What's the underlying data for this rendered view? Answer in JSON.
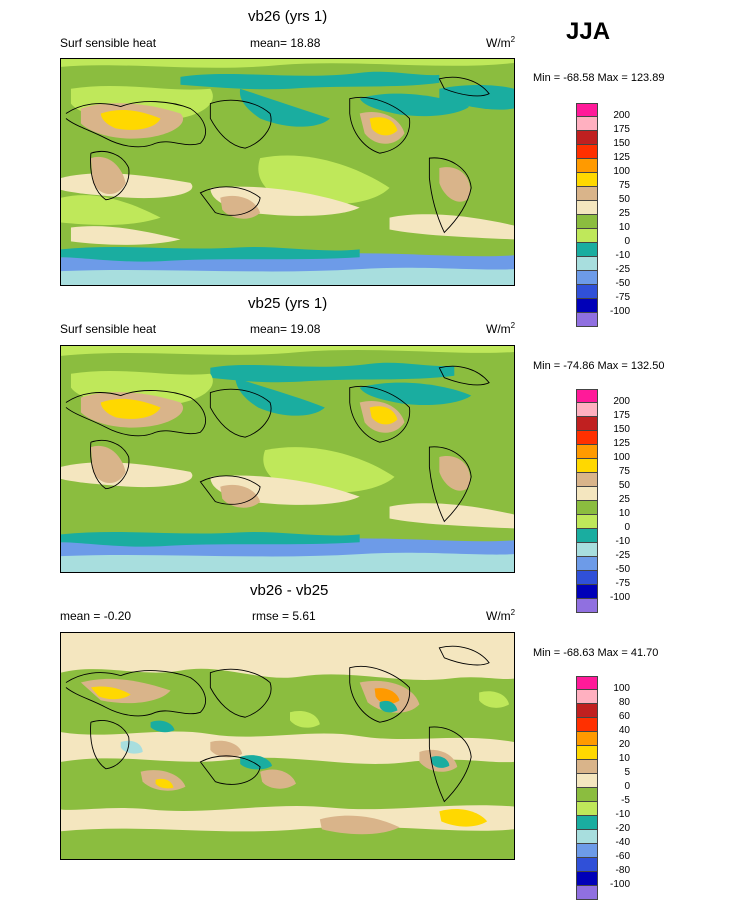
{
  "season": "JJA",
  "panels": [
    {
      "title": "vb26 (yrs 1)",
      "left_label": "Surf sensible heat",
      "stat_label": "mean=",
      "stat_value": "18.88",
      "units": "W/m",
      "units_sup": "2",
      "minmax": "Min = -68.58 Max = 123.89",
      "levels": [
        "200",
        "175",
        "150",
        "125",
        "100",
        "75",
        "50",
        "25",
        "10",
        "0",
        "-10",
        "-25",
        "-50",
        "-75",
        "-100"
      ]
    },
    {
      "title": "vb25 (yrs 1)",
      "left_label": "Surf sensible heat",
      "stat_label": "mean=",
      "stat_value": "19.08",
      "units": "W/m",
      "units_sup": "2",
      "minmax": "Min = -74.86 Max = 132.50",
      "levels": [
        "200",
        "175",
        "150",
        "125",
        "100",
        "75",
        "50",
        "25",
        "10",
        "0",
        "-10",
        "-25",
        "-50",
        "-75",
        "-100"
      ]
    },
    {
      "title": "vb26 - vb25",
      "left_label": "mean =  -0.20",
      "stat_label": "rmse =",
      "stat_value": "5.61",
      "units": "W/m",
      "units_sup": "2",
      "minmax": "Min = -68.63 Max =  41.70",
      "levels": [
        "100",
        "80",
        "60",
        "40",
        "20",
        "10",
        "5",
        "0",
        "-5",
        "-10",
        "-20",
        "-40",
        "-60",
        "-80",
        "-100"
      ]
    }
  ],
  "colors": [
    "#ff1a99",
    "#ffb0c0",
    "#c02020",
    "#ff3000",
    "#ff9a00",
    "#ffd800",
    "#d9b48a",
    "#f4e6bf",
    "#8bbd3f",
    "#bfe85a",
    "#1aada0",
    "#a8dede",
    "#6d9be8",
    "#3050d8",
    "#0000b8",
    "#9070e0"
  ]
}
